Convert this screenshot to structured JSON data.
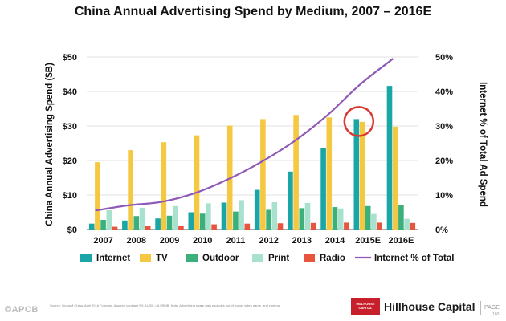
{
  "chart_data": {
    "type": "bar",
    "title": "China Annual Advertising Spend by Medium, 2007 – 2016E",
    "ylabel_left": "China Annual Advertising Spend ($B)",
    "ylabel_right": "Internet % of Total Ad Spend",
    "ylim_left": [
      0,
      50
    ],
    "ylim_right": [
      0,
      50
    ],
    "yticks_left": [
      "$0",
      "$10",
      "$20",
      "$30",
      "$40",
      "$50"
    ],
    "yticks_right": [
      "0%",
      "10%",
      "20%",
      "30%",
      "40%",
      "50%"
    ],
    "categories": [
      "2007",
      "2008",
      "2009",
      "2010",
      "2011",
      "2012",
      "2013",
      "2014",
      "2015E",
      "2016E"
    ],
    "series": [
      {
        "name": "Internet",
        "color": "#1aa6a6",
        "values": [
          1.7,
          2.6,
          3.2,
          5.0,
          7.8,
          11.5,
          16.8,
          23.5,
          32.0,
          41.6
        ]
      },
      {
        "name": "TV",
        "color": "#f5c842",
        "values": [
          19.5,
          23.0,
          25.3,
          27.3,
          30.1,
          32.0,
          33.2,
          32.5,
          31.2,
          29.8
        ]
      },
      {
        "name": "Outdoor",
        "color": "#3bb07a",
        "values": [
          2.8,
          3.9,
          4.0,
          4.6,
          5.2,
          5.7,
          6.2,
          6.5,
          6.8,
          7.0
        ]
      },
      {
        "name": "Print",
        "color": "#a8e2cf",
        "values": [
          5.6,
          6.3,
          6.8,
          7.6,
          8.5,
          7.9,
          7.7,
          6.1,
          4.5,
          3.1
        ]
      },
      {
        "name": "Radio",
        "color": "#e8553f",
        "values": [
          0.8,
          1.0,
          1.1,
          1.5,
          1.7,
          1.8,
          1.9,
          2.0,
          2.0,
          1.9
        ]
      }
    ],
    "line_series": {
      "name": "Internet % of Total",
      "color": "#8e59b8",
      "axis": "right",
      "values": [
        5.5,
        7.0,
        8.0,
        10.5,
        14.5,
        19.5,
        25.5,
        33.0,
        42.0,
        49.5
      ]
    },
    "highlight": {
      "category": "2015E",
      "series": "Internet",
      "color": "#d9392e"
    },
    "legend_position": "bottom"
  },
  "footer": {
    "watermark": "©APCB",
    "footnote": "Source: GroupM China, April 2016 Forecast. Assume constant FX: 1USD = 6.5RMB. Note: Advertising share data excludes out of home, video game, and cinema.",
    "logo_line1": "HILLHOUSE",
    "logo_line2": "CAPITAL",
    "brand": "Hillhouse Capital",
    "page_label": "PAGE",
    "page_number": "160"
  }
}
